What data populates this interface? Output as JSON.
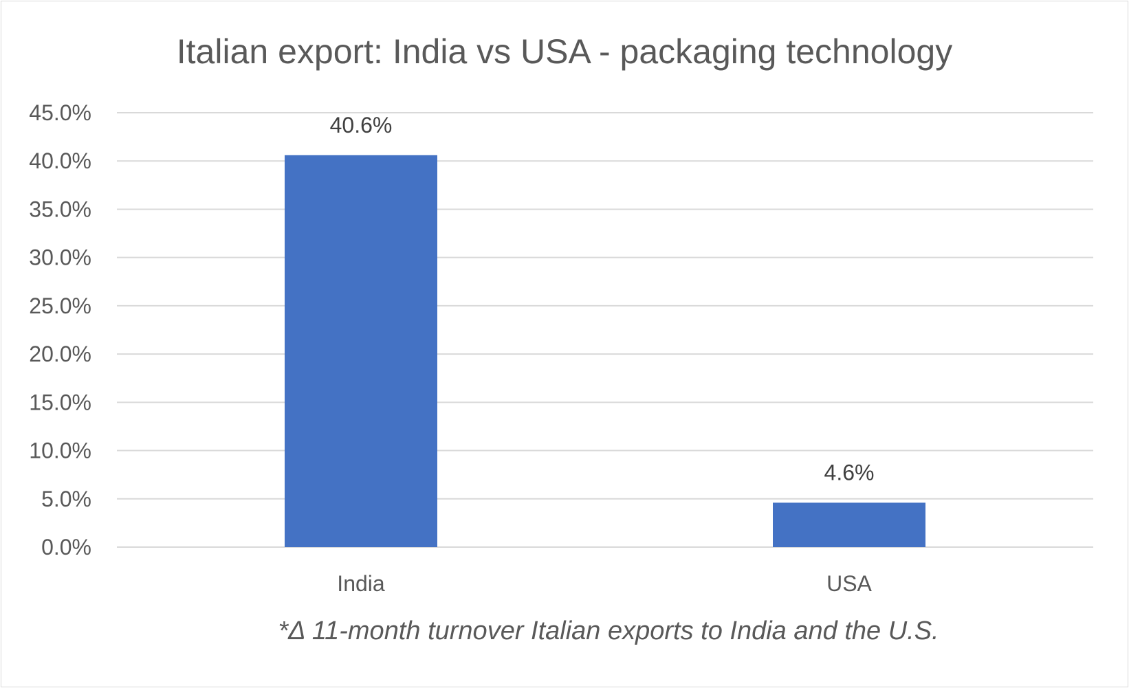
{
  "chart_data": {
    "type": "bar",
    "title": "Italian export: India vs USA - packaging technology",
    "categories": [
      "India",
      "USA"
    ],
    "values": [
      40.6,
      4.6
    ],
    "data_labels": [
      "40.6%",
      "4.6%"
    ],
    "ylim": [
      0,
      45
    ],
    "yticks": [
      0,
      5,
      10,
      15,
      20,
      25,
      30,
      35,
      40,
      45
    ],
    "ytick_labels": [
      "0.0%",
      "5.0%",
      "10.0%",
      "15.0%",
      "20.0%",
      "25.0%",
      "30.0%",
      "35.0%",
      "40.0%",
      "45.0%"
    ],
    "grid": true,
    "legend": "none",
    "bar_color": "#4472C4",
    "gridline_color": "#d9d9d9",
    "footnote": "*Δ 11-month turnover Italian exports to India and the U.S."
  }
}
